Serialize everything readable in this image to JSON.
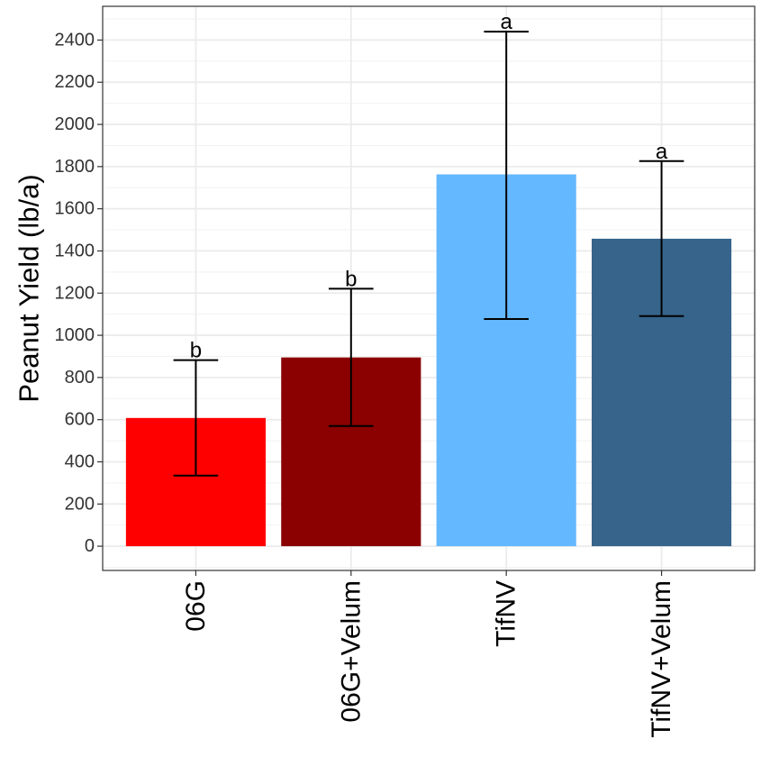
{
  "chart_data": {
    "type": "bar",
    "title": "",
    "xlabel": "",
    "ylabel": "Peanut Yield (lb/a)",
    "categories": [
      "06G",
      "06G+Velum",
      "TifNV",
      "TifNV+Velum"
    ],
    "values": [
      608,
      895,
      1763,
      1458
    ],
    "error_low": [
      335,
      570,
      1077,
      1091
    ],
    "error_high": [
      882,
      1221,
      2440,
      1826
    ],
    "significance_labels": [
      "b",
      "b",
      "a",
      "a"
    ],
    "colors": [
      "#FF0000",
      "#8B0000",
      "#63B8FF",
      "#36648B"
    ],
    "ylim": [
      -115,
      2560
    ],
    "yticks": [
      0,
      200,
      400,
      600,
      800,
      1000,
      1200,
      1400,
      1600,
      1800,
      2000,
      2200,
      2400
    ],
    "grid": true,
    "legend": "none"
  }
}
